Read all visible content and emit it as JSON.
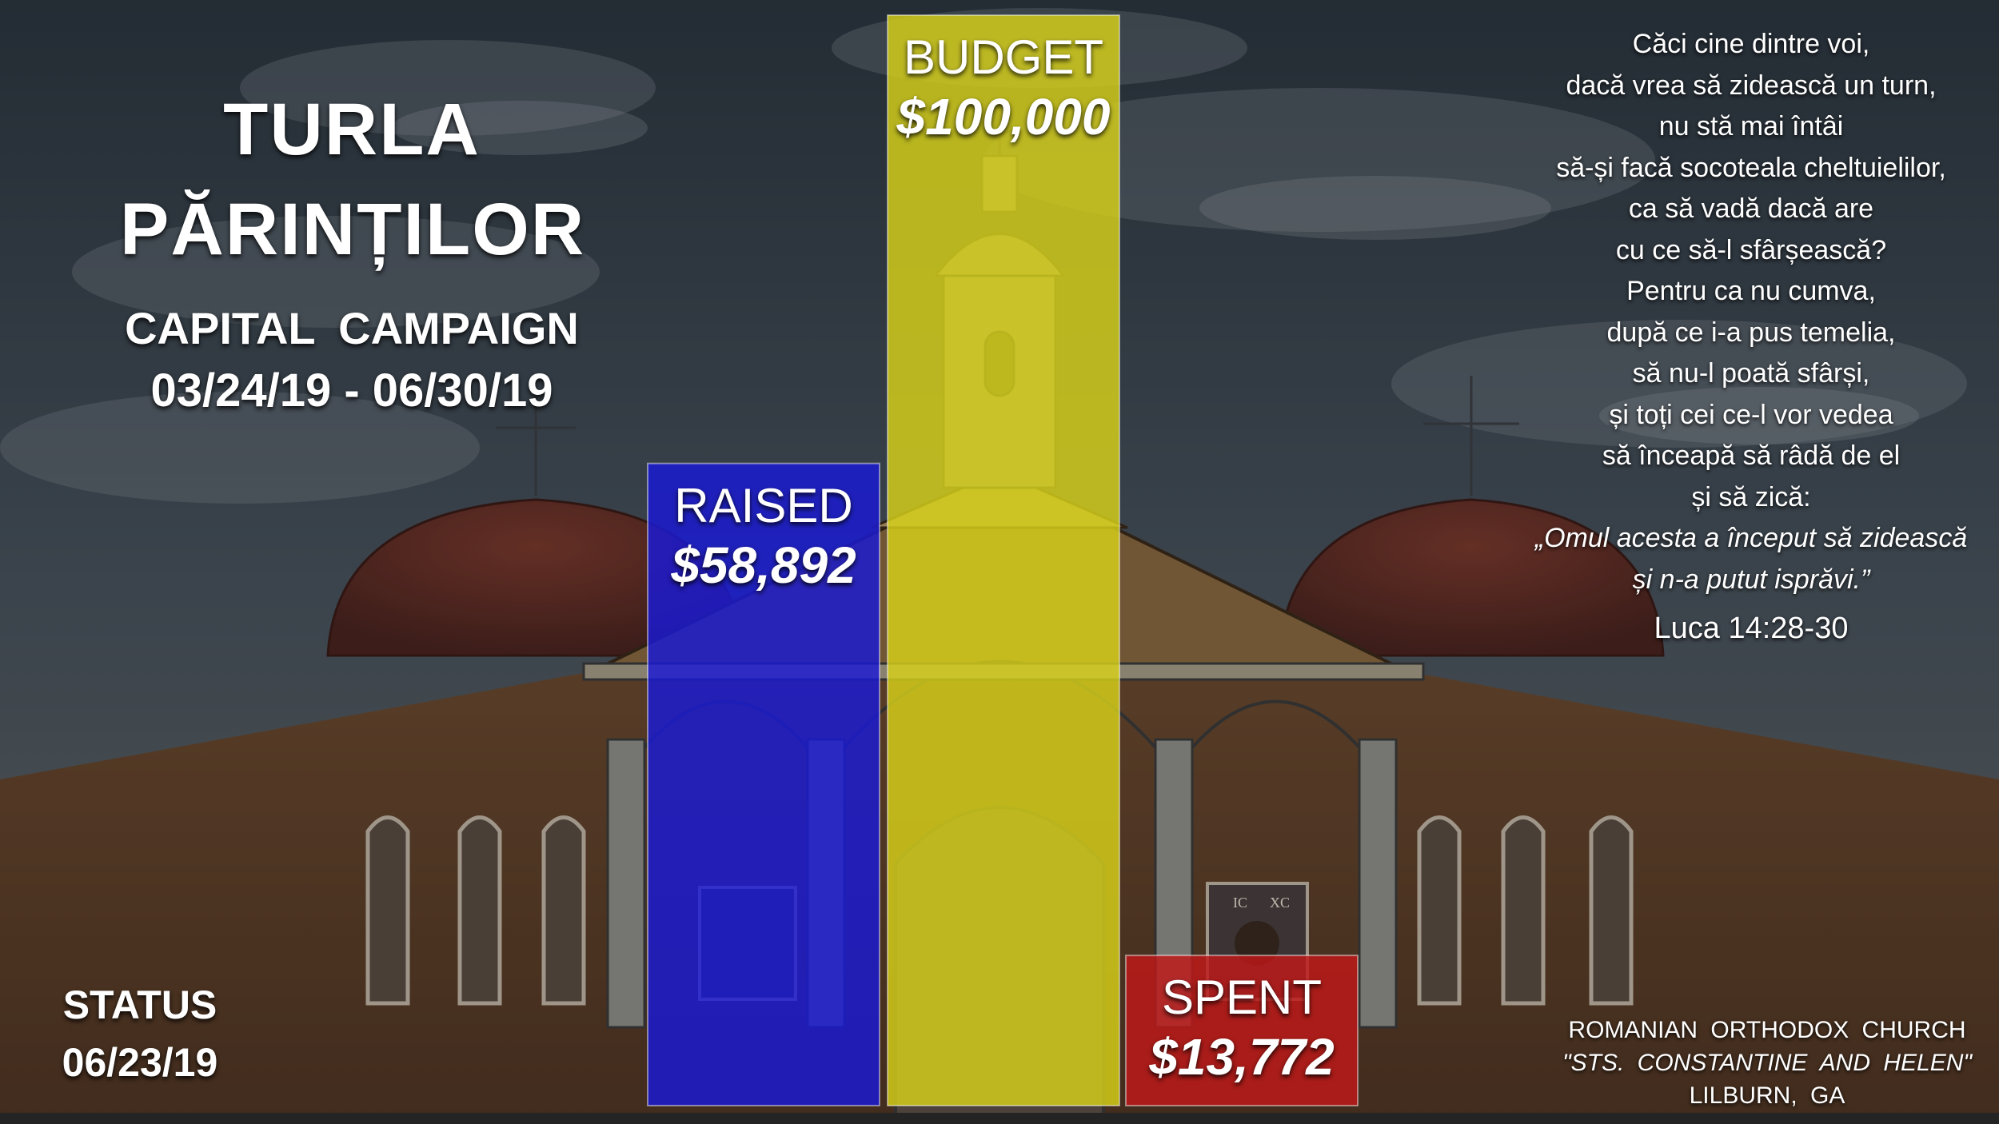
{
  "header": {
    "title_line1": "TURLA",
    "title_line2": "PĂRINȚILOR",
    "subtitle": "CAPITAL  CAMPAIGN",
    "date_range": "03/24/19 - 06/30/19"
  },
  "status": {
    "label": "STATUS",
    "date": "06/23/19"
  },
  "chart_data": {
    "type": "bar",
    "categories": [
      "RAISED",
      "BUDGET",
      "SPENT"
    ],
    "values": [
      58892,
      100000,
      13772
    ],
    "value_labels": [
      "$58,892",
      "$100,000",
      "$13,772"
    ],
    "colors": [
      "#1a1ad6",
      "#d8d21a",
      "#c01818"
    ],
    "ylim": [
      0,
      100000
    ],
    "grid": false,
    "legend": "none"
  },
  "verse": {
    "lines": [
      "Căci cine dintre voi,",
      "dacă vrea să zidească un turn,",
      "nu stă mai întâi",
      "să-și facă socoteala cheltuielilor,",
      "ca să vadă dacă are",
      "cu ce să-l sfârșească?",
      "Pentru ca nu cumva,",
      "după ce i-a pus temelia,",
      "să nu-l poată sfârși,",
      "și toți cei ce-l vor vedea",
      "să înceapă să râdă de el",
      "și să zică:"
    ],
    "quote_lines": [
      "„Omul acesta a început să zidească",
      "și n-a putut isprăvi.”"
    ],
    "reference": "Luca 14:28-30"
  },
  "church": {
    "line1": "ROMANIAN  ORTHODOX  CHURCH",
    "line2": "\"STS.  CONSTANTINE  AND  HELEN\"",
    "line3": "LILBURN,  GA"
  },
  "icon_labels": {
    "icon_left": "IC",
    "icon_right": "XC"
  }
}
